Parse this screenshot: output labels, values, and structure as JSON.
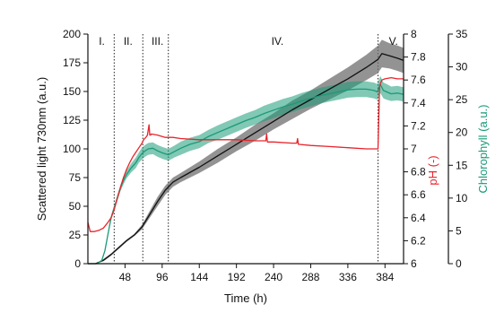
{
  "chart_data": {
    "type": "line",
    "x_axis": {
      "label": "Time (h)",
      "range": [
        0,
        408
      ],
      "ticks": [
        48,
        96,
        144,
        192,
        240,
        288,
        336,
        384
      ]
    },
    "y_axes": {
      "left": {
        "label": "Scattered light 730nm (a.u.)",
        "range": [
          0,
          200
        ],
        "ticks": [
          0,
          25,
          50,
          75,
          100,
          125,
          150,
          175,
          200
        ],
        "color": "#111111"
      },
      "ph": {
        "label": "pH (-)",
        "range": [
          6,
          8
        ],
        "ticks": [
          "6",
          "6.2",
          "6.4",
          "6.6",
          "6.8",
          "7",
          "7.2",
          "7.4",
          "7.6",
          "7.8",
          "8"
        ],
        "color": "#e8242b"
      },
      "chlorophyll": {
        "label": "Chlorophyll (a.u.)",
        "range": [
          0,
          35
        ],
        "ticks": [
          0,
          5,
          10,
          15,
          20,
          25,
          30,
          35
        ],
        "color": "#1a9a78"
      }
    },
    "phases": [
      {
        "label": "I.",
        "x_center": 18
      },
      {
        "label": "II.",
        "x_center": 52
      },
      {
        "label": "III.",
        "x_center": 90
      },
      {
        "label": "IV.",
        "x_center": 245
      },
      {
        "label": "V.",
        "x_center": 395
      }
    ],
    "phase_boundaries": [
      34,
      71,
      104,
      375
    ],
    "series": [
      {
        "axis": "left",
        "color": "#111111",
        "band_color": "#6f6f6f",
        "x": [
          0,
          10,
          20,
          30,
          40,
          50,
          60,
          70,
          80,
          90,
          100,
          110,
          120,
          144,
          168,
          192,
          216,
          240,
          264,
          288,
          312,
          336,
          360,
          375,
          380,
          390,
          400,
          408
        ],
        "y": [
          0,
          0,
          3,
          8,
          14,
          20,
          25,
          32,
          43,
          54,
          64,
          71,
          75,
          84,
          94,
          104,
          114,
          124,
          134,
          143,
          152,
          161,
          171,
          178,
          183,
          181,
          179,
          177
        ],
        "spread": [
          0,
          0,
          1,
          1,
          1,
          1,
          1,
          2,
          3,
          4,
          4,
          4,
          4,
          5,
          6,
          6,
          7,
          7,
          8,
          8,
          9,
          10,
          11,
          12,
          12,
          11,
          11,
          11
        ]
      },
      {
        "axis": "chlorophyll",
        "color": "#1a9a78",
        "band_color": "#1a9a78",
        "x": [
          0,
          12,
          18,
          22,
          26,
          30,
          34,
          38,
          42,
          46,
          50,
          56,
          62,
          66,
          70,
          74,
          78,
          84,
          90,
          96,
          104,
          112,
          120,
          132,
          144,
          156,
          168,
          180,
          192,
          204,
          216,
          228,
          240,
          252,
          264,
          276,
          288,
          300,
          312,
          324,
          336,
          348,
          360,
          370,
          374,
          378,
          382,
          386,
          392,
          400,
          408
        ],
        "y": [
          0,
          0,
          0.5,
          2,
          4.5,
          7,
          8.5,
          10,
          11.5,
          12.7,
          13.6,
          14.6,
          15.4,
          16.2,
          16.8,
          17.2,
          17.5,
          17.6,
          17.2,
          16.9,
          16.6,
          17.1,
          17.6,
          18.2,
          18.6,
          19.4,
          20.0,
          20.6,
          21.2,
          21.8,
          22.3,
          22.9,
          23.4,
          23.9,
          24.3,
          24.8,
          25.2,
          25.6,
          25.9,
          26.2,
          26.5,
          26.6,
          26.6,
          26.4,
          26.2,
          27.3,
          26.4,
          26.2,
          25.9,
          26.0,
          25.8
        ],
        "spread": [
          0,
          0,
          0,
          0.2,
          0.3,
          0.4,
          0.4,
          0.5,
          0.5,
          0.6,
          0.6,
          0.7,
          0.8,
          0.8,
          0.9,
          0.9,
          0.9,
          0.9,
          0.9,
          0.9,
          0.9,
          0.9,
          1.0,
          1.0,
          1.0,
          1.0,
          1.1,
          1.1,
          1.1,
          1.1,
          1.1,
          1.2,
          1.2,
          1.2,
          1.2,
          1.2,
          1.2,
          1.2,
          1.2,
          1.2,
          1.2,
          1.2,
          1.2,
          1.2,
          1.2,
          1.3,
          1.2,
          1.2,
          1.1,
          1.1,
          1.1
        ]
      },
      {
        "axis": "ph",
        "color": "#e8242b",
        "x": [
          0,
          3,
          8,
          14,
          20,
          26,
          30,
          34,
          38,
          42,
          46,
          50,
          54,
          58,
          62,
          66,
          70,
          72,
          75,
          77,
          79,
          80,
          81,
          82,
          90,
          100,
          110,
          120,
          144,
          168,
          192,
          216,
          230,
          231,
          232,
          240,
          264,
          270,
          271,
          272,
          288,
          312,
          336,
          360,
          372,
          375,
          377,
          380,
          384,
          392,
          400,
          408
        ],
        "y": [
          6.36,
          6.28,
          6.28,
          6.29,
          6.31,
          6.36,
          6.4,
          6.47,
          6.57,
          6.66,
          6.75,
          6.82,
          6.88,
          6.93,
          6.97,
          7.01,
          7.05,
          7.08,
          7.1,
          7.12,
          7.21,
          7.12,
          7.12,
          7.13,
          7.12,
          7.1,
          7.1,
          7.09,
          7.08,
          7.08,
          7.08,
          7.07,
          7.07,
          7.13,
          7.06,
          7.06,
          7.05,
          7.05,
          7.09,
          7.04,
          7.03,
          7.02,
          7.01,
          7.0,
          7.0,
          7.0,
          7.55,
          7.6,
          7.61,
          7.62,
          7.61,
          7.61
        ]
      }
    ]
  }
}
